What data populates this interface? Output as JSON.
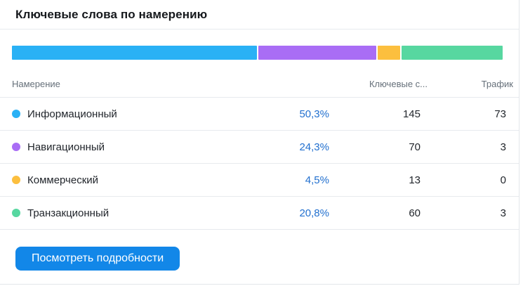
{
  "header": {
    "title": "Ключевые слова по намерению"
  },
  "chart_data": {
    "type": "bar",
    "variant": "horizontal-stacked-single-bar",
    "title": "Ключевые слова по намерению",
    "categories": [
      "Информационный",
      "Навигационный",
      "Коммерческий",
      "Транзакционный"
    ],
    "values": [
      50.3,
      24.3,
      4.5,
      20.8
    ],
    "unit": "%",
    "colors": [
      "#2ab1f5",
      "#a96df5",
      "#fcbf3e",
      "#57d7a0"
    ],
    "legend_position": "table-below",
    "axes": "none"
  },
  "table": {
    "columns": {
      "intent": "Намерение",
      "percent": "",
      "keywords": "Ключевые с...",
      "traffic": "Трафик"
    },
    "rows": [
      {
        "intent": "Информационный",
        "percent": "50,3%",
        "keywords": "145",
        "traffic": "73",
        "color": "#2ab1f5"
      },
      {
        "intent": "Навигационный",
        "percent": "24,3%",
        "keywords": "70",
        "traffic": "3",
        "color": "#a96df5"
      },
      {
        "intent": "Коммерческий",
        "percent": "4,5%",
        "keywords": "13",
        "traffic": "0",
        "color": "#fcbf3e"
      },
      {
        "intent": "Транзакционный",
        "percent": "20,8%",
        "keywords": "60",
        "traffic": "3",
        "color": "#57d7a0"
      }
    ]
  },
  "footer": {
    "button_label": "Посмотреть подробности"
  },
  "colors": {
    "link_blue": "#2270cf",
    "button_blue": "#1287e8",
    "border_gray": "#e7eaee",
    "header_text_gray": "#66707a",
    "body_text_dark": "#22262c"
  }
}
